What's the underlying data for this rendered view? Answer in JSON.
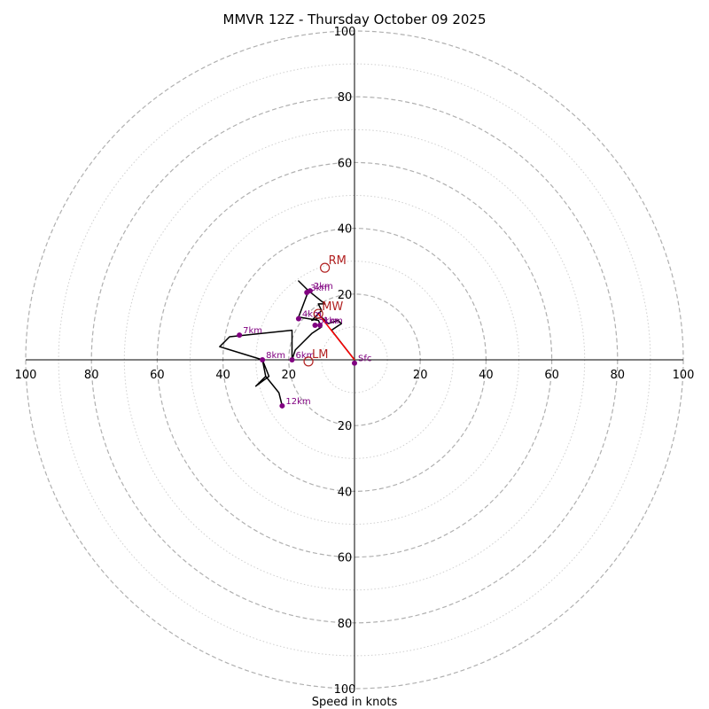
{
  "chart_data": {
    "type": "hodograph",
    "title": "MMVR 12Z - Thursday October 09 2025",
    "xlabel": "Speed in knots",
    "units": "knots",
    "axis_range": [
      -100,
      100
    ],
    "rings_major": [
      20,
      40,
      60,
      80,
      100
    ],
    "rings_minor": [
      10,
      30,
      50,
      70,
      90
    ],
    "tick_labels": {
      "x": [
        {
          "value": -100,
          "label": "100"
        },
        {
          "value": -80,
          "label": "80"
        },
        {
          "value": -60,
          "label": "60"
        },
        {
          "value": -40,
          "label": "40"
        },
        {
          "value": -20,
          "label": "20"
        },
        {
          "value": 20,
          "label": "20"
        },
        {
          "value": 40,
          "label": "40"
        },
        {
          "value": 60,
          "label": "60"
        },
        {
          "value": 80,
          "label": "80"
        },
        {
          "value": 100,
          "label": "100"
        }
      ],
      "y": [
        {
          "value": 100,
          "label": "100"
        },
        {
          "value": 80,
          "label": "80"
        },
        {
          "value": 60,
          "label": "60"
        },
        {
          "value": 40,
          "label": "40"
        },
        {
          "value": 20,
          "label": "20"
        },
        {
          "value": -20,
          "label": "20"
        },
        {
          "value": -40,
          "label": "40"
        },
        {
          "value": -60,
          "label": "60"
        },
        {
          "value": -80,
          "label": "80"
        },
        {
          "value": -100,
          "label": "100"
        }
      ]
    },
    "trace": [
      {
        "u": 0,
        "v": 0
      },
      {
        "u": -7,
        "v": 9
      },
      {
        "u": -4,
        "v": 11
      },
      {
        "u": -5,
        "v": 12
      },
      {
        "u": -8,
        "v": 11
      },
      {
        "u": -10,
        "v": 13
      },
      {
        "u": -13,
        "v": 12
      },
      {
        "u": -10,
        "v": 15
      },
      {
        "u": -11,
        "v": 17
      },
      {
        "u": -9,
        "v": 17
      },
      {
        "u": -14,
        "v": 21
      },
      {
        "u": -17,
        "v": 24
      },
      {
        "u": -14,
        "v": 21
      },
      {
        "u": -17,
        "v": 13
      },
      {
        "u": -11,
        "v": 12
      },
      {
        "u": -10,
        "v": 10
      },
      {
        "u": -13,
        "v": 8
      },
      {
        "u": -18,
        "v": 3
      },
      {
        "u": -19,
        "v": 0
      },
      {
        "u": -19,
        "v": 9
      },
      {
        "u": -38,
        "v": 7
      },
      {
        "u": -41,
        "v": 4
      },
      {
        "u": -28,
        "v": 0
      },
      {
        "u": -27,
        "v": -5
      },
      {
        "u": -30,
        "v": -8
      },
      {
        "u": -26,
        "v": -5
      },
      {
        "u": -28,
        "v": 0
      },
      {
        "u": -27,
        "v": -5
      },
      {
        "u": -23,
        "v": -10
      },
      {
        "u": -22,
        "v": -14
      }
    ],
    "height_markers": [
      {
        "label": "Sfc",
        "u": 0,
        "v": -1
      },
      {
        "label": "1km",
        "u": -10.5,
        "v": 10.5
      },
      {
        "label": "2km",
        "u": -13.5,
        "v": 21
      },
      {
        "label": "3km",
        "u": -14.5,
        "v": 20.5
      },
      {
        "label": "4km",
        "u": -17,
        "v": 12.5
      },
      {
        "label": "5km",
        "u": -12,
        "v": 10.5
      },
      {
        "label": "6km",
        "u": -19,
        "v": 0
      },
      {
        "label": "7km",
        "u": -35,
        "v": 7.5
      },
      {
        "label": "8km",
        "u": -28,
        "v": 0
      },
      {
        "label": "12km",
        "u": -22,
        "v": -14
      }
    ],
    "storm_motion": [
      {
        "label": "RM",
        "u": -9,
        "v": 28
      },
      {
        "label": "MW",
        "u": -11,
        "v": 14
      },
      {
        "label": "LM",
        "u": -14,
        "v": -0.5
      }
    ],
    "mean_wind_vector": {
      "from": {
        "u": 0,
        "v": 0
      },
      "to": {
        "u": -11,
        "v": 14
      }
    },
    "colors": {
      "trace": "#000000",
      "markers": "#800080",
      "storm_motion": "#b22222",
      "mean_wind_vector": "#ff0000",
      "grid": "#b0b0b0"
    }
  }
}
